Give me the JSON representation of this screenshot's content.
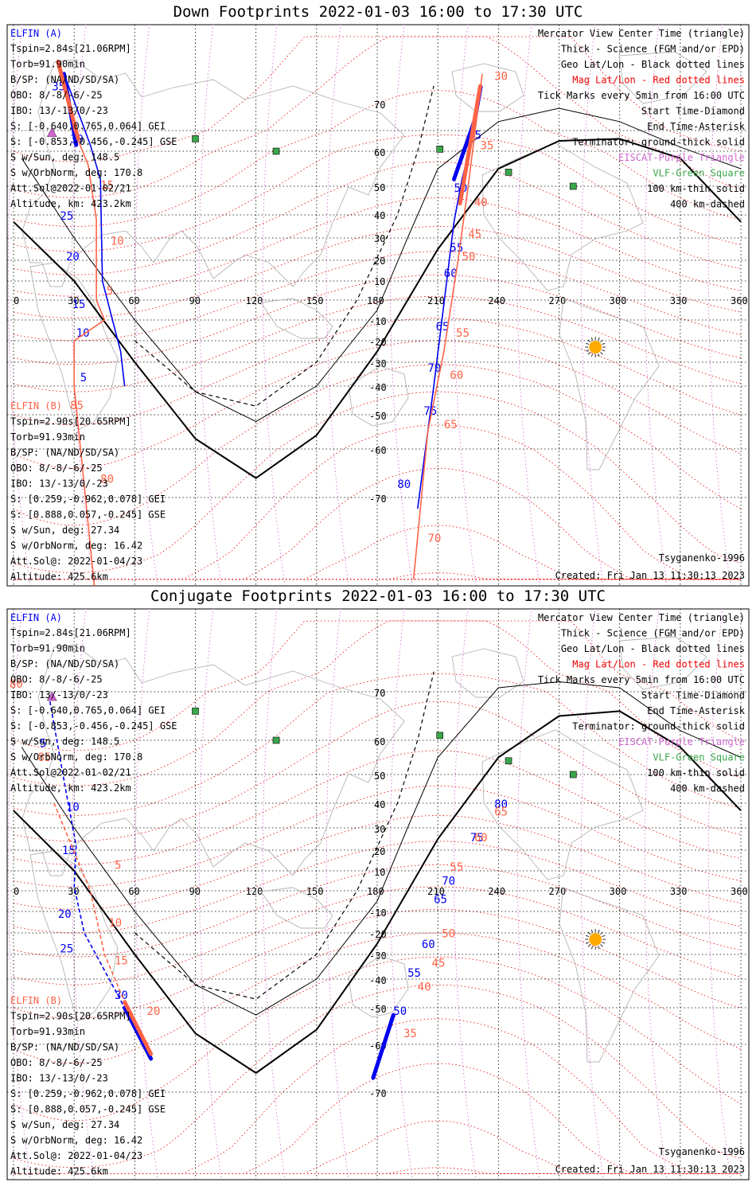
{
  "colors": {
    "elfin_a": "#0000ee",
    "elfin_b": "#ff6347",
    "mag_grid": "#ee0000",
    "geo_grid": "#000000",
    "eiscat": "#cc66cc",
    "vlf": "#3aa64a",
    "coast": "#b4b4b4",
    "sun": "#ffaa00"
  },
  "panels": [
    {
      "title": "Down Footprints 2022-01-03 16:00 to 17:30 UTC",
      "elfin_a": {
        "name": "ELFIN (A)",
        "lines": [
          "Tspin=2.84s[21.06RPM]",
          "Torb=91.90min",
          "B/SP: (NA/ND/SD/SA)",
          "OBO: 8/-8/-6/-25",
          "IBO: 13/-13/0/-23",
          "S: [-0.640,0.765,0.064] GEI",
          "S: [-0.853,-0.456,-0.245] GSE",
          "S w/Sun, deg: 148.5",
          "S w/OrbNorm, deg: 170.8",
          "Att.Sol@2022-01-02/21",
          "Altitude, km: 423.2km"
        ]
      },
      "elfin_b": {
        "name": "ELFIN (B)",
        "lines": [
          "Tspin=2.90s[20.65RPM]",
          "Torb=91.93min",
          "B/SP: (NA/ND/SD/SA)",
          "OBO: 8/-8/-6/-25",
          "IBO: 13/-13/0/-23",
          "S: [0.259,-0.962,0.078] GEI",
          "S: [0.888,0.057,-0.245] GSE",
          "S w/Sun, deg: 27.34",
          "S w/OrbNorm, deg: 16.42",
          "Att.Sol@: 2022-01-04/23",
          "Altitude: 425.6km"
        ]
      },
      "legend": [
        "Mercator View Center Time (triangle)",
        "Thick - Science (FGM and/or EPD)",
        "Geo Lat/Lon - Black dotted lines",
        "Mag Lat/Lon - Red dotted lines",
        "Tick Marks every 5min from 16:00 UTC",
        "Start Time-Diamond",
        "End Time-Asterisk",
        "Terminator: ground-thick solid",
        "EISCAT-Purple Triangle",
        "VLF-Green Square",
        "100 km-thin solid",
        "400 km-dashed"
      ],
      "model": "Tsyganenko-1996",
      "created": "Created: Fri Jan 13 11:30:13 2023"
    },
    {
      "title": "Conjugate Footprints 2022-01-03 16:00 to 17:30 UTC",
      "elfin_a": {
        "name": "ELFIN (A)",
        "lines": [
          "Tspin=2.84s[21.06RPM]",
          "Torb=91.90min",
          "B/SP: (NA/ND/SD/SA)",
          "OBO: 8/-8/-6/-25",
          "IBO: 13/-13/0/-23",
          "S: [-0.640,0.765,0.064] GEI",
          "S: [-0.853,-0.456,-0.245] GSE",
          "S w/Sun, deg: 148.5",
          "S w/OrbNorm, deg: 170.8",
          "Att.Sol@2022-01-02/21",
          "Altitude, km: 423.2km"
        ]
      },
      "elfin_b": {
        "name": "ELFIN (B)",
        "lines": [
          "Tspin=2.90s[20.65RPM]",
          "Torb=91.93min",
          "B/SP: (NA/ND/SD/SA)",
          "OBO: 8/-8/-6/-25",
          "IBO: 13/-13/0/-23",
          "S: [0.259,-0.962,0.078] GEI",
          "S: [0.888,0.057,-0.245] GSE",
          "S w/Sun, deg: 27.34",
          "S w/OrbNorm, deg: 16.42",
          "Att.Sol@: 2022-01-04/23",
          "Altitude: 425.6km"
        ]
      },
      "legend": [
        "Mercator View Center Time (triangle)",
        "Thick - Science (FGM and/or EPD)",
        "Geo Lat/Lon - Black dotted lines",
        "Mag Lat/Lon - Red dotted lines",
        "Tick Marks every 5min from 16:00 UTC",
        "Start Time-Diamond",
        "End Time-Asterisk",
        "Terminator: ground-thick solid",
        "EISCAT-Purple Triangle",
        "VLF-Green Square",
        "100 km-thin solid",
        "400 km-dashed"
      ],
      "model": "Tsyganenko-1996",
      "created": "Created: Fri Jan 13 11:30:13 2023"
    }
  ],
  "chart_data": [
    {
      "type": "map-track",
      "title": "Down Footprints 2022-01-03 16:00 to 17:30 UTC",
      "lon_ticks": [
        0,
        30,
        60,
        90,
        120,
        150,
        180,
        210,
        240,
        270,
        300,
        330,
        360
      ],
      "lat_ticks": [
        70,
        60,
        50,
        40,
        30,
        20,
        10,
        -10,
        -20,
        -30,
        -40,
        -50,
        -60,
        -70
      ],
      "xlim": [
        0,
        360
      ],
      "ylim": [
        -80,
        85
      ],
      "vlf_sites": [
        {
          "lon": 90,
          "lat": 66
        },
        {
          "lon": 130,
          "lat": 60
        },
        {
          "lon": 211,
          "lat": 61
        },
        {
          "lon": 245,
          "lat": 54
        },
        {
          "lon": 277,
          "lat": 50
        }
      ],
      "eiscat_sites": [
        {
          "lon": 19,
          "lat": 69
        }
      ],
      "sun": {
        "lon": 288,
        "lat": -23
      },
      "terminator": [
        [
          0,
          37
        ],
        [
          30,
          10
        ],
        [
          60,
          -30
        ],
        [
          90,
          -57
        ],
        [
          120,
          -66
        ],
        [
          150,
          -56
        ],
        [
          180,
          -25
        ],
        [
          210,
          25
        ],
        [
          240,
          55
        ],
        [
          270,
          65
        ],
        [
          300,
          66
        ],
        [
          330,
          58
        ],
        [
          360,
          37
        ]
      ],
      "track_100km": [
        [
          4,
          58
        ],
        [
          30,
          30
        ],
        [
          60,
          -10
        ],
        [
          90,
          -42
        ],
        [
          120,
          -52
        ],
        [
          150,
          -40
        ],
        [
          180,
          -5
        ],
        [
          195,
          30
        ],
        [
          210,
          55
        ],
        [
          240,
          72
        ],
        [
          270,
          75
        ],
        [
          300,
          72
        ],
        [
          330,
          62
        ],
        [
          360,
          55
        ]
      ],
      "track_400km": [
        [
          60,
          -20
        ],
        [
          90,
          -42
        ],
        [
          120,
          -47
        ],
        [
          150,
          -30
        ],
        [
          170,
          0
        ],
        [
          190,
          40
        ],
        [
          200,
          60
        ],
        [
          208,
          80
        ]
      ],
      "series": [
        {
          "name": "ELFIN (A)",
          "points": [
            [
              25,
              82
            ],
            [
              38,
              63
            ],
            [
              43,
              52
            ],
            [
              44,
              10
            ],
            [
              53,
              -25
            ],
            [
              55,
              -40
            ],
            [
              200,
              -72
            ],
            [
              208,
              -40
            ],
            [
              213,
              -2
            ],
            [
              218,
              37
            ],
            [
              222,
              52
            ],
            [
              228,
              70
            ],
            [
              232,
              80
            ]
          ],
          "science": [
            [
              [
                25,
                82
              ],
              [
                31,
                63
              ]
            ],
            [
              [
                218,
                52
              ],
              [
                228,
                72
              ]
            ]
          ],
          "ticks": [
            {
              "label": "35",
              "lon": 19,
              "lat": 79
            },
            {
              "label": "30",
              "lon": 28,
              "lat": 64
            },
            {
              "label": "25",
              "lon": 23,
              "lat": 38
            },
            {
              "label": "20",
              "lon": 26,
              "lat": 20
            },
            {
              "label": "15",
              "lon": 29,
              "lat": -4
            },
            {
              "label": "10",
              "lon": 31,
              "lat": -18
            },
            {
              "label": "5",
              "lon": 33,
              "lat": -38
            },
            {
              "label": "80",
              "lon": 190,
              "lat": -68
            },
            {
              "label": "75",
              "lon": 203,
              "lat": -50
            },
            {
              "label": "70",
              "lon": 205,
              "lat": -34
            },
            {
              "label": "65",
              "lon": 209,
              "lat": -15
            },
            {
              "label": "60",
              "lon": 213,
              "lat": 12
            },
            {
              "label": "55",
              "lon": 216,
              "lat": 24
            },
            {
              "label": "50",
              "lon": 218,
              "lat": 48
            },
            {
              "label": "45",
              "lon": 225,
              "lat": 66
            }
          ]
        },
        {
          "name": "ELFIN (B)",
          "points": [
            [
              23,
              84
            ],
            [
              30,
              70
            ],
            [
              37,
              56
            ],
            [
              41,
              38
            ],
            [
              41,
              0
            ],
            [
              45,
              -10
            ],
            [
              30,
              -20
            ],
            [
              30,
              -40
            ],
            [
              40,
              -90
            ],
            [
              198,
              -88
            ],
            [
              205,
              -55
            ],
            [
              213,
              -25
            ],
            [
              220,
              20
            ],
            [
              225,
              50
            ],
            [
              232,
              82
            ]
          ],
          "science": [
            [
              [
                22,
                84
              ],
              [
                32,
                66
              ]
            ],
            [
              [
                221,
                44
              ],
              [
                231,
                80
              ]
            ]
          ],
          "ticks": [
            {
              "label": "30",
              "lon": 238,
              "lat": 81
            },
            {
              "label": "35",
              "lon": 231,
              "lat": 61
            },
            {
              "label": "40",
              "lon": 228,
              "lat": 43
            },
            {
              "label": "45",
              "lon": 225,
              "lat": 30
            },
            {
              "label": "50",
              "lon": 222,
              "lat": 20
            },
            {
              "label": "55",
              "lon": 219,
              "lat": -18
            },
            {
              "label": "60",
              "lon": 216,
              "lat": -37
            },
            {
              "label": "65",
              "lon": 213,
              "lat": -54
            },
            {
              "label": "70",
              "lon": 205,
              "lat": -78
            },
            {
              "label": "85",
              "lon": 28,
              "lat": -48
            },
            {
              "label": "80",
              "lon": 43,
              "lat": -67
            },
            {
              "label": "5",
              "lon": 46,
              "lat": 3
            },
            {
              "label": "10",
              "lon": 48,
              "lat": 27
            },
            {
              "label": "15",
              "lon": 43,
              "lat": 49
            }
          ]
        }
      ]
    },
    {
      "type": "map-track",
      "title": "Conjugate Footprints 2022-01-03 16:00 to 17:30 UTC",
      "lon_ticks": [
        0,
        30,
        60,
        90,
        120,
        150,
        180,
        210,
        240,
        270,
        300,
        330,
        360
      ],
      "lat_ticks": [
        70,
        60,
        50,
        40,
        30,
        20,
        10,
        -10,
        -20,
        -30,
        -40,
        -50,
        -60,
        -70
      ],
      "xlim": [
        0,
        360
      ],
      "ylim": [
        -80,
        85
      ],
      "vlf_sites": [
        {
          "lon": 90,
          "lat": 66
        },
        {
          "lon": 130,
          "lat": 60
        },
        {
          "lon": 211,
          "lat": 61
        },
        {
          "lon": 245,
          "lat": 54
        },
        {
          "lon": 277,
          "lat": 50
        }
      ],
      "eiscat_sites": [
        {
          "lon": 19,
          "lat": 69
        }
      ],
      "sun": {
        "lon": 288,
        "lat": -23
      },
      "series": [
        {
          "name": "ELFIN (A)",
          "points": [
            [
              18,
              68
            ],
            [
              26,
              44
            ],
            [
              31,
              22
            ],
            [
              30,
              2
            ],
            [
              35,
              -20
            ],
            [
              55,
              -50
            ],
            [
              68,
              -63
            ]
          ],
          "science": [
            [
              [
                55,
                -50
              ],
              [
                68,
                -63
              ]
            ],
            [
              [
                178,
                -67
              ],
              [
                188,
                -52
              ]
            ]
          ],
          "ticks": [
            {
              "label": "5",
              "lon": 13,
              "lat": 58
            },
            {
              "label": "10",
              "lon": 26,
              "lat": 37
            },
            {
              "label": "15",
              "lon": 24,
              "lat": 18
            },
            {
              "label": "20",
              "lon": 22,
              "lat": -13
            },
            {
              "label": "25",
              "lon": 23,
              "lat": -29
            },
            {
              "label": "30",
              "lon": 50,
              "lat": -47
            },
            {
              "label": "50",
              "lon": 188,
              "lat": -52
            },
            {
              "label": "55",
              "lon": 195,
              "lat": -39
            },
            {
              "label": "60",
              "lon": 202,
              "lat": -27
            },
            {
              "label": "65",
              "lon": 208,
              "lat": -6
            },
            {
              "label": "70",
              "lon": 212,
              "lat": 3
            },
            {
              "label": "75",
              "lon": 226,
              "lat": 24
            },
            {
              "label": "80",
              "lon": 238,
              "lat": 38
            }
          ]
        },
        {
          "name": "ELFIN (B)",
          "points": [
            [
              20,
              40
            ],
            [
              38,
              0
            ],
            [
              45,
              -30
            ],
            [
              55,
              -48
            ],
            [
              68,
              -62
            ]
          ],
          "science": [
            [
              [
                55,
                -48
              ],
              [
                68,
                -62
              ]
            ]
          ],
          "ticks": [
            {
              "label": "80",
              "lon": -2,
              "lat": 72
            },
            {
              "label": "85",
              "lon": 12,
              "lat": 54
            },
            {
              "label": "5",
              "lon": 50,
              "lat": 11
            },
            {
              "label": "10",
              "lon": 47,
              "lat": -17
            },
            {
              "label": "15",
              "lon": 50,
              "lat": -34
            },
            {
              "label": "20",
              "lon": 66,
              "lat": -52
            },
            {
              "label": "35",
              "lon": 193,
              "lat": -58
            },
            {
              "label": "40",
              "lon": 200,
              "lat": -44
            },
            {
              "label": "45",
              "lon": 207,
              "lat": -35
            },
            {
              "label": "50",
              "lon": 212,
              "lat": -22
            },
            {
              "label": "55",
              "lon": 216,
              "lat": 10
            },
            {
              "label": "60",
              "lon": 228,
              "lat": 24
            },
            {
              "label": "65",
              "lon": 238,
              "lat": 35
            }
          ]
        }
      ]
    }
  ]
}
